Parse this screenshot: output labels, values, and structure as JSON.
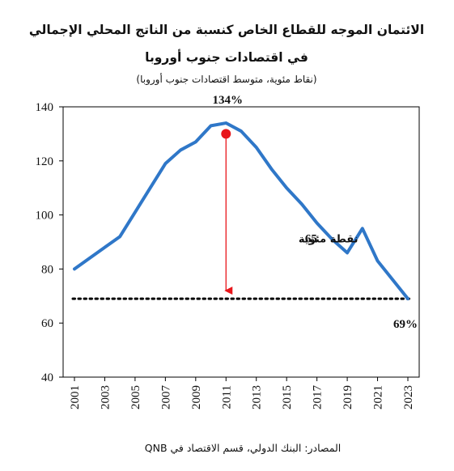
{
  "chart_data": {
    "type": "line",
    "title_line1": "الائتمان الموجه للقطاع الخاص كنسبة من الناتج المحلي الإجمالي",
    "title_line2": "في اقتصادات جنوب أوروبا",
    "subtitle": "(نقاط مئوية، متوسط اقتصادات جنوب أوروبا)",
    "source": "المصادر: البنك الدولي، قسم الاقتصاد في QNB",
    "ylim": [
      40,
      140
    ],
    "yticks": [
      "40",
      "60",
      "80",
      "100",
      "120",
      "140"
    ],
    "xlim": [
      2001,
      2023
    ],
    "xticks": [
      "2001",
      "2003",
      "2005",
      "2007",
      "2009",
      "2011",
      "2013",
      "2015",
      "2017",
      "2019",
      "2021",
      "2023"
    ],
    "series": [
      {
        "color": "#2f77c8",
        "x": [
          2001,
          2002,
          2003,
          2004,
          2005,
          2006,
          2007,
          2008,
          2009,
          2010,
          2011,
          2012,
          2013,
          2014,
          2015,
          2016,
          2017,
          2018,
          2019,
          2020,
          2021,
          2022,
          2023
        ],
        "y": [
          80,
          84,
          88,
          92,
          101,
          110,
          119,
          124,
          127,
          133,
          134,
          131,
          125,
          117,
          110,
          104,
          97,
          91,
          86,
          95,
          83,
          76,
          69
        ]
      }
    ],
    "reference_line": {
      "y": 69,
      "style": "dotted",
      "color": "#000000"
    },
    "peak_marker": {
      "x": 2011,
      "y": 130,
      "color": "#e8161b"
    },
    "arrow": {
      "x": 2011,
      "y_from": 130,
      "y_to": 72,
      "color": "#e8161b"
    },
    "annotations": {
      "peak_label": "134%",
      "end_label": "69%",
      "gap_value": "65",
      "gap_text": "نقطة مئوية"
    },
    "grid": false,
    "legend": "none"
  }
}
